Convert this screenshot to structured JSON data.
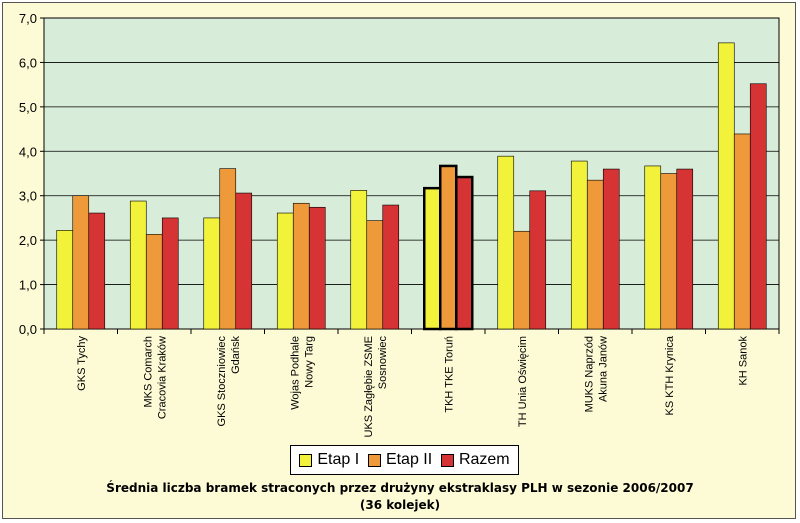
{
  "chart_data": {
    "type": "bar",
    "title": "Średnia liczba bramek straconych przez drużyny ekstraklasy PLH w sezonie 2006/2007",
    "subtitle": "(36 kolejek)",
    "ylim": [
      0,
      7
    ],
    "y_ticks": [
      "0,0",
      "1,0",
      "2,0",
      "3,0",
      "4,0",
      "5,0",
      "6,0",
      "7,0"
    ],
    "grid": "horizontal",
    "legend_position": "bottom",
    "highlighted_category": "TKH TKE Toruń",
    "categories": [
      [
        "GKS Tychy"
      ],
      [
        "MKS Comarch",
        "Cracovia Kraków"
      ],
      [
        "GKS Stoczniowiec",
        "Gdańsk"
      ],
      [
        "Wojas Podhale",
        "Nowy Targ"
      ],
      [
        "UKS Zagłębie ZSME",
        "Sosnowiec"
      ],
      [
        "TKH TKE Toruń"
      ],
      [
        "TH Unia Oświęcim"
      ],
      [
        "MUKS Naprzód",
        "Akuna Janów"
      ],
      [
        "KS KTH Krynica"
      ],
      [
        "KH Sanok"
      ]
    ],
    "series": [
      {
        "name": "Etap I",
        "color": "#f2f23a",
        "values": [
          2.22,
          2.88,
          2.5,
          2.61,
          3.12,
          3.17,
          3.89,
          3.78,
          3.67,
          6.44
        ]
      },
      {
        "name": "Etap II",
        "color": "#ee9a3a",
        "values": [
          3.0,
          2.13,
          3.61,
          2.83,
          2.44,
          3.67,
          2.2,
          3.35,
          3.5,
          4.39
        ]
      },
      {
        "name": "Razem",
        "color": "#d63434",
        "values": [
          2.61,
          2.5,
          3.06,
          2.74,
          2.79,
          3.42,
          3.11,
          3.6,
          3.6,
          5.52
        ]
      }
    ],
    "plot_background": "#d7ecd9"
  }
}
